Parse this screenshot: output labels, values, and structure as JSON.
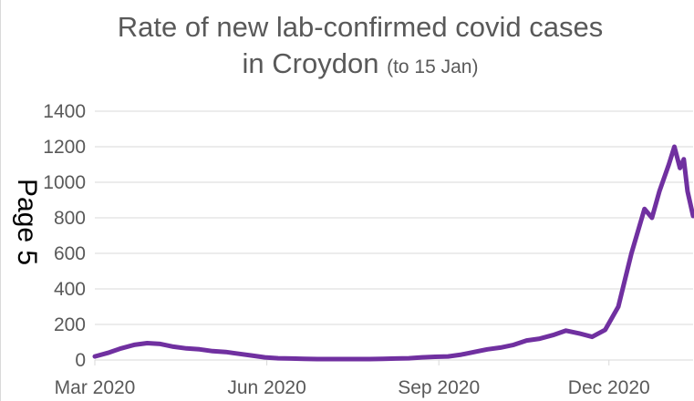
{
  "page_label": "Page 5",
  "colors": {
    "series": "#7030a0",
    "grid": "#d9d9d9",
    "text": "#595959"
  },
  "chart_data": {
    "type": "line",
    "title_main": "Rate of new lab-confirmed covid cases",
    "title_line2": "in Croydon",
    "title_note": "(to 15 Jan)",
    "xlabel": "",
    "ylabel": "",
    "ylim": [
      0,
      1400
    ],
    "yticks": [
      0,
      200,
      400,
      600,
      800,
      1000,
      1200,
      1400
    ],
    "ytick_labels": [
      "0",
      "200",
      "400",
      "600",
      "800",
      "1000",
      "1200",
      "1400"
    ],
    "xlim": [
      "2020-03-01",
      "2021-01-15"
    ],
    "xticks": [
      "2020-03-01",
      "2020-06-01",
      "2020-09-01",
      "2020-12-01"
    ],
    "xtick_labels": [
      "Mar 2020",
      "Jun 2020",
      "Sep 2020",
      "Dec 2020"
    ],
    "grid": true,
    "legend": "none",
    "series": [
      {
        "points": [
          [
            "2020-03-01",
            20
          ],
          [
            "2020-03-08",
            40
          ],
          [
            "2020-03-15",
            65
          ],
          [
            "2020-03-22",
            85
          ],
          [
            "2020-03-29",
            95
          ],
          [
            "2020-04-05",
            90
          ],
          [
            "2020-04-12",
            75
          ],
          [
            "2020-04-19",
            65
          ],
          [
            "2020-04-26",
            60
          ],
          [
            "2020-05-03",
            50
          ],
          [
            "2020-05-10",
            45
          ],
          [
            "2020-05-17",
            35
          ],
          [
            "2020-05-24",
            25
          ],
          [
            "2020-05-31",
            15
          ],
          [
            "2020-06-07",
            10
          ],
          [
            "2020-06-14",
            8
          ],
          [
            "2020-06-21",
            6
          ],
          [
            "2020-06-28",
            5
          ],
          [
            "2020-07-05",
            5
          ],
          [
            "2020-07-12",
            5
          ],
          [
            "2020-07-19",
            5
          ],
          [
            "2020-07-26",
            5
          ],
          [
            "2020-08-02",
            6
          ],
          [
            "2020-08-09",
            8
          ],
          [
            "2020-08-16",
            10
          ],
          [
            "2020-08-23",
            15
          ],
          [
            "2020-08-30",
            18
          ],
          [
            "2020-09-06",
            20
          ],
          [
            "2020-09-13",
            30
          ],
          [
            "2020-09-20",
            45
          ],
          [
            "2020-09-27",
            60
          ],
          [
            "2020-10-04",
            70
          ],
          [
            "2020-10-11",
            85
          ],
          [
            "2020-10-18",
            110
          ],
          [
            "2020-10-25",
            120
          ],
          [
            "2020-11-01",
            140
          ],
          [
            "2020-11-08",
            165
          ],
          [
            "2020-11-15",
            150
          ],
          [
            "2020-11-22",
            130
          ],
          [
            "2020-11-29",
            170
          ],
          [
            "2020-12-06",
            300
          ],
          [
            "2020-12-13",
            600
          ],
          [
            "2020-12-20",
            850
          ],
          [
            "2020-12-24",
            800
          ],
          [
            "2020-12-28",
            950
          ],
          [
            "2021-01-02",
            1100
          ],
          [
            "2021-01-05",
            1200
          ],
          [
            "2021-01-08",
            1080
          ],
          [
            "2021-01-10",
            1130
          ],
          [
            "2021-01-12",
            950
          ],
          [
            "2021-01-15",
            810
          ]
        ]
      }
    ]
  }
}
